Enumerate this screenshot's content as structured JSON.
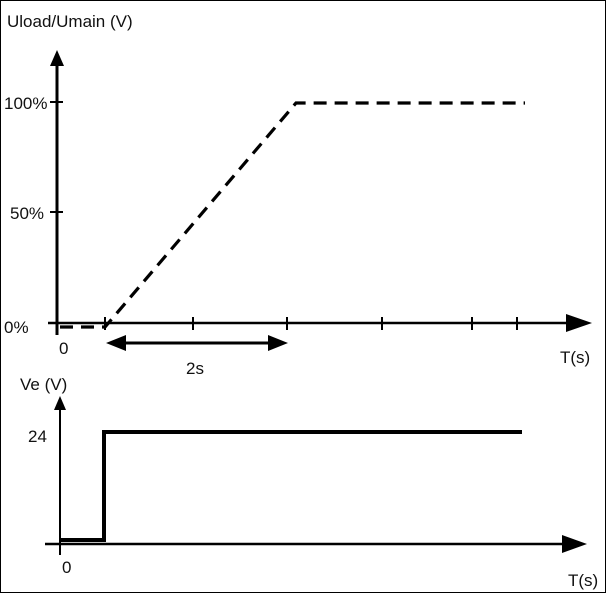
{
  "top_panel": {
    "y_axis_label": "Uload/Umain (V)",
    "tick_100": "100%",
    "tick_50": "50%",
    "tick_0": "0%",
    "origin_label": "0",
    "x_axis_label": "T(s)",
    "ramp_duration_label": "2s",
    "ramp_duration_s": 2,
    "voltage_levels_percent": [
      0,
      0,
      100,
      100
    ],
    "line_style": "dashed"
  },
  "bottom_panel": {
    "y_axis_label": "Ve (V)",
    "tick_24": "24",
    "origin_label": "0",
    "x_axis_label": "T(s)",
    "control_levels_volts": [
      0,
      0,
      24,
      24
    ],
    "line_style": "solid"
  },
  "colors": {
    "line": "#000000",
    "background": "#ffffff"
  }
}
